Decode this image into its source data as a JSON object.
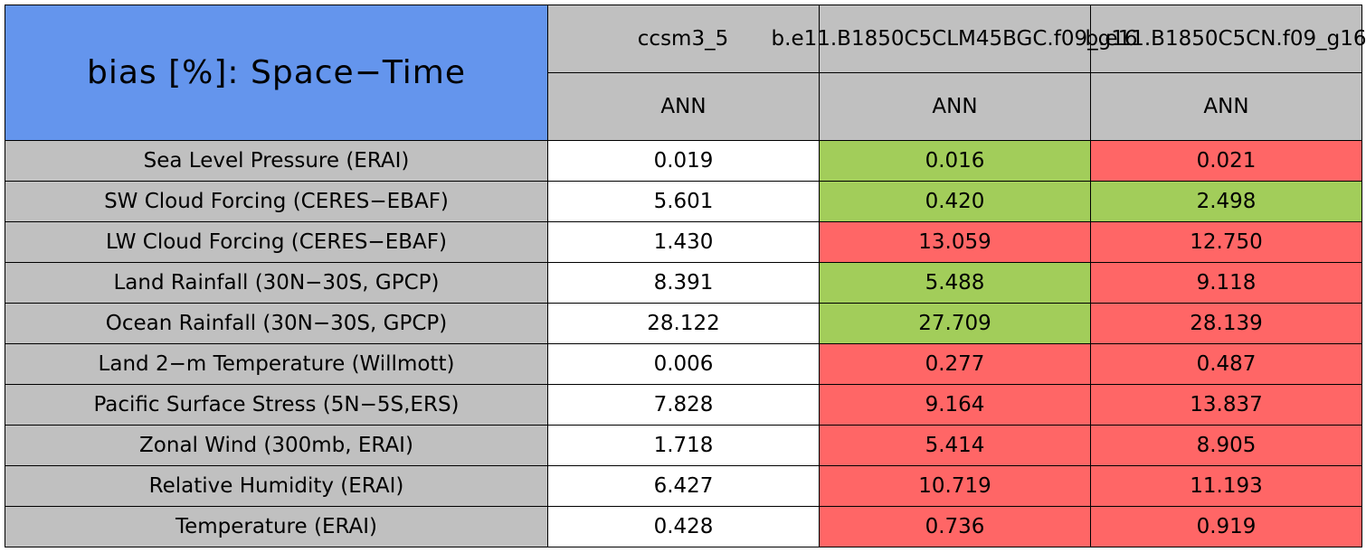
{
  "table": {
    "title": "bias [%]: Space−Time",
    "title_color": "#6495ed",
    "label_color": "#c0c0c0",
    "header_color": "#c0c0c0",
    "columns": [
      {
        "name": "ccsm3_5",
        "season": "ANN"
      },
      {
        "name": "b.e11.B1850C5CLM45BGC.f09_g16",
        "season": "ANN"
      },
      {
        "name": "b.e11.B1850C5CN.f09_g16",
        "season": "ANN"
      }
    ],
    "rows": [
      {
        "label": "Sea Level Pressure (ERAI)",
        "cells": [
          "0.019",
          "0.016",
          "0.021"
        ],
        "colors": [
          "#ffffff",
          "#a2cd5a",
          "#ff6666"
        ]
      },
      {
        "label": "SW Cloud Forcing (CERES−EBAF)",
        "cells": [
          "5.601",
          "0.420",
          "2.498"
        ],
        "colors": [
          "#ffffff",
          "#a2cd5a",
          "#a2cd5a"
        ]
      },
      {
        "label": "LW Cloud Forcing (CERES−EBAF)",
        "cells": [
          "1.430",
          "13.059",
          "12.750"
        ],
        "colors": [
          "#ffffff",
          "#ff6666",
          "#ff6666"
        ]
      },
      {
        "label": "Land Rainfall (30N−30S, GPCP)",
        "cells": [
          "8.391",
          "5.488",
          "9.118"
        ],
        "colors": [
          "#ffffff",
          "#a2cd5a",
          "#ff6666"
        ]
      },
      {
        "label": "Ocean Rainfall (30N−30S, GPCP)",
        "cells": [
          "28.122",
          "27.709",
          "28.139"
        ],
        "colors": [
          "#ffffff",
          "#a2cd5a",
          "#ff6666"
        ]
      },
      {
        "label": "Land 2−m Temperature (Willmott)",
        "cells": [
          "0.006",
          "0.277",
          "0.487"
        ],
        "colors": [
          "#ffffff",
          "#ff6666",
          "#ff6666"
        ]
      },
      {
        "label": "Pacific Surface Stress (5N−5S,ERS)",
        "cells": [
          "7.828",
          "9.164",
          "13.837"
        ],
        "colors": [
          "#ffffff",
          "#ff6666",
          "#ff6666"
        ]
      },
      {
        "label": "Zonal Wind (300mb, ERAI)",
        "cells": [
          "1.718",
          "5.414",
          "8.905"
        ],
        "colors": [
          "#ffffff",
          "#ff6666",
          "#ff6666"
        ]
      },
      {
        "label": "Relative Humidity (ERAI)",
        "cells": [
          "6.427",
          "10.719",
          "11.193"
        ],
        "colors": [
          "#ffffff",
          "#ff6666",
          "#ff6666"
        ]
      },
      {
        "label": "Temperature (ERAI)",
        "cells": [
          "0.428",
          "0.736",
          "0.919"
        ],
        "colors": [
          "#ffffff",
          "#ff6666",
          "#ff6666"
        ]
      }
    ]
  }
}
